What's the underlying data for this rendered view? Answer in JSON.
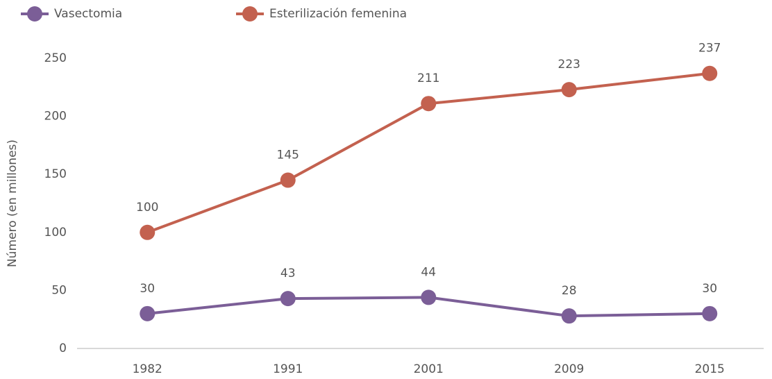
{
  "chart_data": {
    "type": "line",
    "y_label": "Número (en millones)",
    "categories": [
      "1982",
      "1991",
      "2001",
      "2009",
      "2015"
    ],
    "series": [
      {
        "name": "Vasectomia",
        "color": "#7b5e97",
        "values": [
          30,
          43,
          44,
          28,
          30
        ]
      },
      {
        "name": "Esterilización femenina",
        "color": "#c3614f",
        "values": [
          100,
          145,
          211,
          223,
          237
        ]
      }
    ],
    "ylim": [
      0,
      250
    ],
    "yticks": [
      0,
      50,
      100,
      150,
      200,
      250
    ],
    "grid": false,
    "legend": "top-left"
  }
}
